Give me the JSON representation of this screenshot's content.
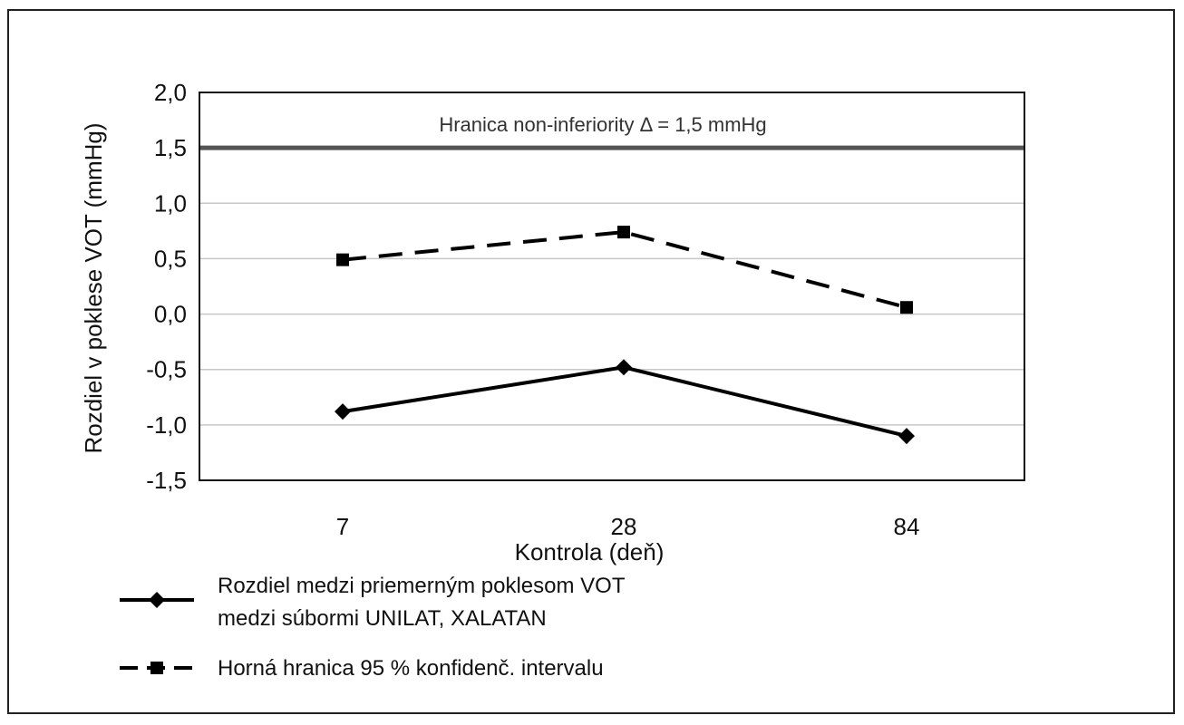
{
  "chart_data": {
    "type": "line",
    "title": "",
    "xlabel": "Kontrola (deň)",
    "ylabel": "Rozdiel v poklese VOT (mmHg)",
    "categories": [
      "7",
      "28",
      "84"
    ],
    "ylim": [
      -1.5,
      2.0
    ],
    "yticks": [
      2.0,
      1.5,
      1.0,
      0.5,
      0.0,
      -0.5,
      -1.0,
      -1.5
    ],
    "ytick_labels": [
      "2,0",
      "1,5",
      "1,0",
      "0,5",
      "0,0",
      "-0,5",
      "-1,0",
      "-1,5"
    ],
    "grid": true,
    "legend_position": "bottom",
    "reference_line": {
      "value": 1.5,
      "label": "Hranica non-inferiority Δ = 1,5 mmHg",
      "color": "#555555"
    },
    "series": [
      {
        "name": "Rozdiel medzi priemerným poklesom VOT medzi súbormi UNILAT, XALATAN",
        "name_lines": [
          "Rozdiel medzi priemerným poklesom VOT",
          "medzi súbormi UNILAT, XALATAN"
        ],
        "values": [
          -0.88,
          -0.48,
          -1.1
        ],
        "marker": "diamond",
        "line_style": "solid",
        "color": "#000000"
      },
      {
        "name": "Horná hranica 95 % konfidenč. intervalu",
        "name_lines": [
          "Horná hranica 95 % konfidenč. intervalu"
        ],
        "values": [
          0.49,
          0.74,
          0.06
        ],
        "marker": "square",
        "line_style": "dashed",
        "color": "#000000"
      }
    ]
  }
}
